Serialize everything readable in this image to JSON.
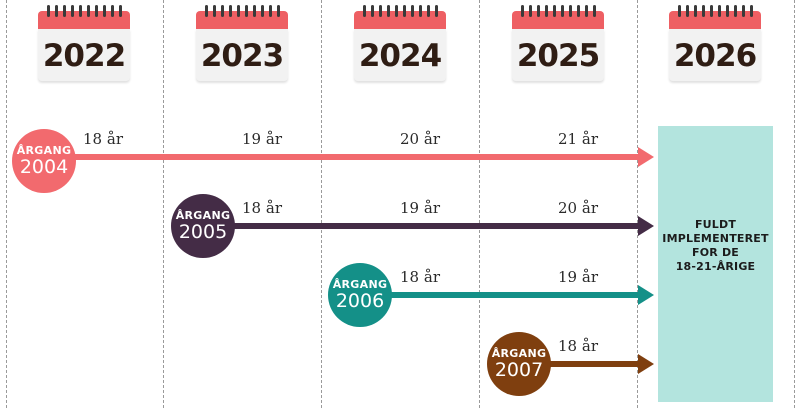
{
  "years": [
    "2022",
    "2023",
    "2024",
    "2025",
    "2026"
  ],
  "rows": [
    {
      "label": "ÅRGANG",
      "cohort": "2004",
      "color": "#f26a6e",
      "ages": [
        "18 år",
        "19 år",
        "20 år",
        "21 år"
      ]
    },
    {
      "label": "ÅRGANG",
      "cohort": "2005",
      "color": "#442c46",
      "ages": [
        "18 år",
        "19 år",
        "20 år"
      ]
    },
    {
      "label": "ÅRGANG",
      "cohort": "2006",
      "color": "#149088",
      "ages": [
        "18 år",
        "19 år"
      ]
    },
    {
      "label": "ÅRGANG",
      "cohort": "2007",
      "color": "#7f3f0f",
      "ages": [
        "18 år"
      ]
    }
  ],
  "final": {
    "lines": [
      "FULDT",
      "IMPLEMENTERET",
      "FOR DE",
      "18-21-ÅRIGE"
    ],
    "color": "#b3e4de"
  }
}
